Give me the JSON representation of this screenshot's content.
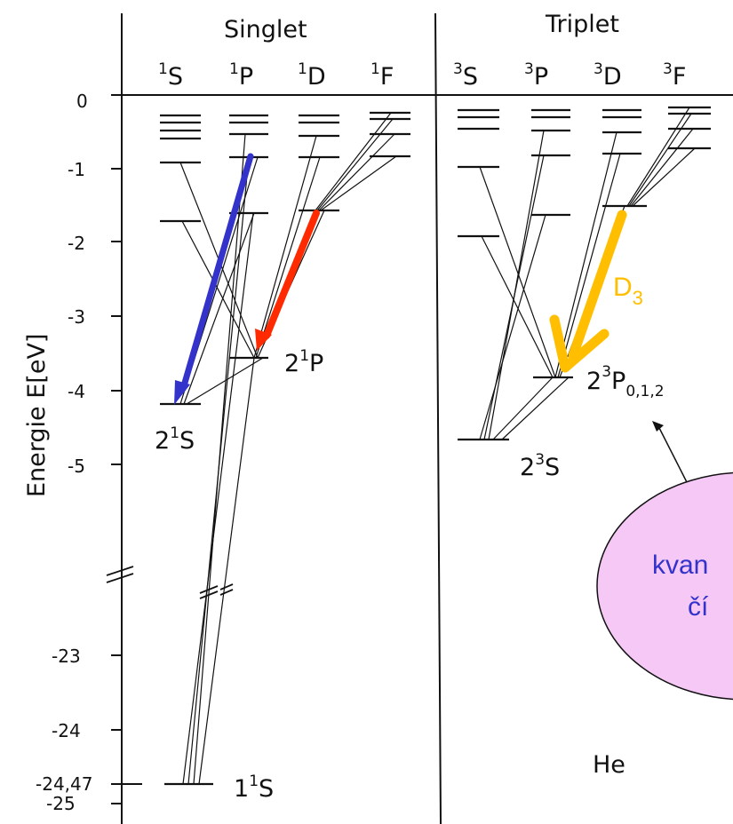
{
  "headers": {
    "singlet": "Singlet",
    "triplet": "Triplet",
    "singlet_cols": [
      {
        "sup": "1",
        "base": "S"
      },
      {
        "sup": "1",
        "base": "P"
      },
      {
        "sup": "1",
        "base": "D"
      },
      {
        "sup": "1",
        "base": "F"
      }
    ],
    "triplet_cols": [
      {
        "sup": "3",
        "base": "S"
      },
      {
        "sup": "3",
        "base": "P"
      },
      {
        "sup": "3",
        "base": "D"
      },
      {
        "sup": "3",
        "base": "F"
      }
    ]
  },
  "axis": {
    "label": "Energie   E[eV]",
    "ticks": [
      "0",
      "-1",
      "-2",
      "-3",
      "-4",
      "-5",
      "-23",
      "-24",
      "-24,47",
      "-25"
    ]
  },
  "levels": {
    "s21": {
      "pre": "2",
      "sup": "1",
      "base": "S"
    },
    "p21": {
      "pre": "2",
      "sup": "1",
      "base": "P"
    },
    "s11": {
      "pre": "1",
      "sup": "1",
      "base": "S"
    },
    "s23": {
      "pre": "2",
      "sup": "3",
      "base": "S"
    },
    "p23": {
      "pre": "2",
      "sup": "3",
      "base": "P",
      "sub": "0,1,2"
    }
  },
  "element": "He",
  "arrows": {
    "blue": "#3333cc",
    "red": "#ff2a00",
    "yellow": "#ffbf00",
    "yellow_label_base": "D",
    "yellow_label_sub": "3"
  },
  "callout": {
    "line1": "kvan",
    "line2": "čí",
    "fill": "#f5c8f5"
  }
}
